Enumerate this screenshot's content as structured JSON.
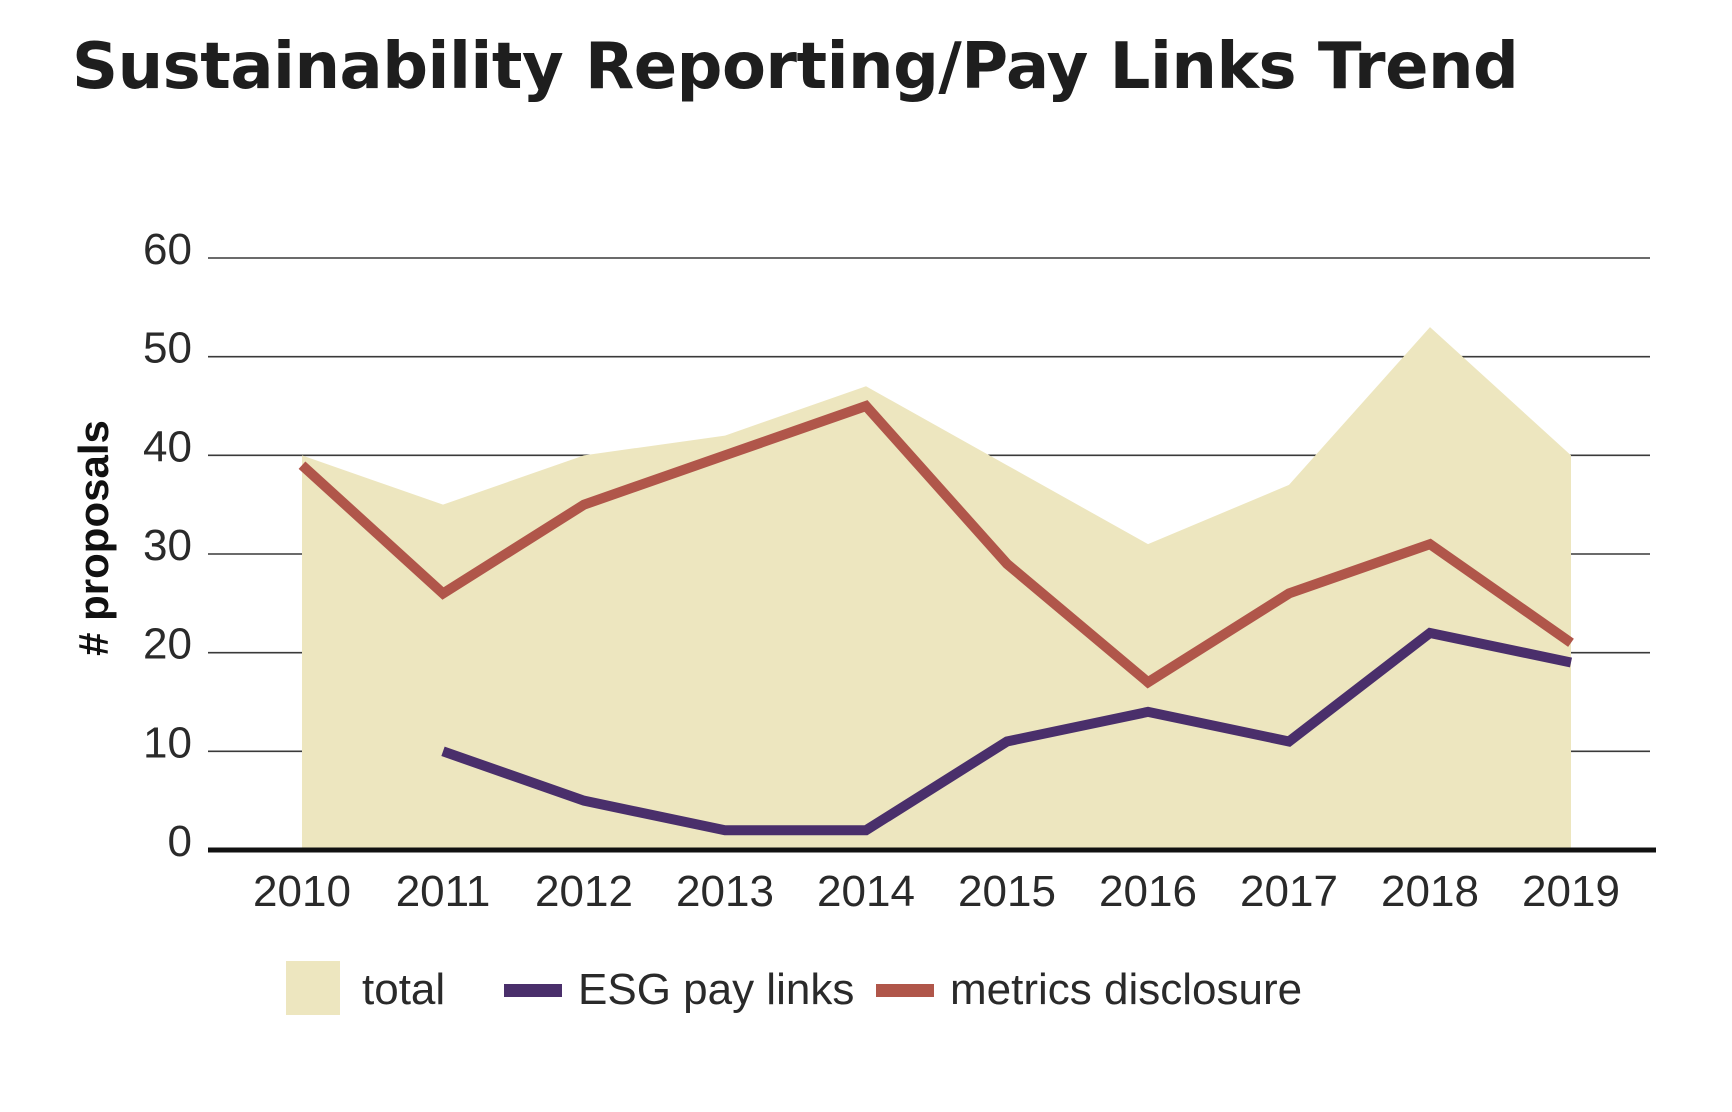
{
  "chart_data": {
    "type": "area",
    "title": "Sustainability Reporting/Pay Links Trend",
    "xlabel": "",
    "ylabel": "# proposals",
    "ylim": [
      0,
      60
    ],
    "yticks": [
      0,
      10,
      20,
      30,
      40,
      50,
      60
    ],
    "grid": true,
    "legend_position": "bottom",
    "categories": [
      "2010",
      "2011",
      "2012",
      "2013",
      "2014",
      "2015",
      "2016",
      "2017",
      "2018",
      "2019"
    ],
    "series": [
      {
        "name": "total",
        "kind": "area",
        "color": "#ede6bf",
        "values": [
          40,
          35,
          40,
          42,
          47,
          39,
          31,
          37,
          53,
          40
        ]
      },
      {
        "name": "ESG pay links",
        "kind": "line",
        "color": "#4a2f6b",
        "values": [
          null,
          10,
          5,
          2,
          2,
          11,
          14,
          11,
          22,
          19
        ]
      },
      {
        "name": "metrics disclosure",
        "kind": "line",
        "color": "#b0564a",
        "values": [
          39,
          26,
          35,
          40,
          45,
          29,
          17,
          26,
          31,
          21
        ]
      }
    ]
  }
}
